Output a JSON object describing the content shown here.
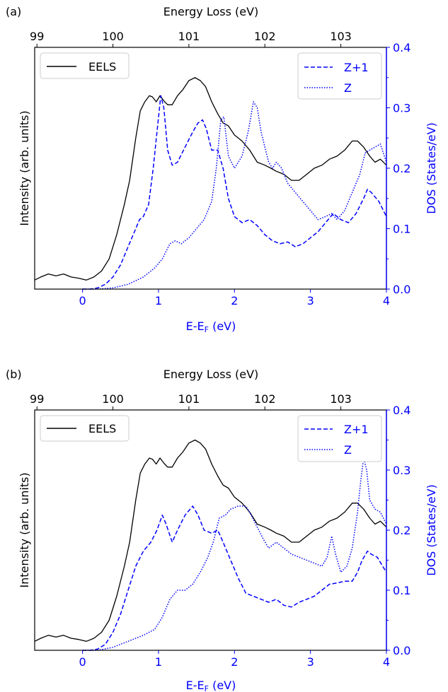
{
  "colors": {
    "eels": "#000000",
    "dos": "#0000ff",
    "text": "#000000",
    "legend_border": "#cccccc"
  },
  "chart_data": [
    {
      "panel_label": "(a)",
      "type": "line",
      "top_axis_label": "Energy Loss (eV)",
      "top_ticks": [
        99,
        100,
        101,
        102,
        103
      ],
      "top_tick_labels": [
        "99",
        "100",
        "101",
        "102",
        "103"
      ],
      "xlabel": "E-E",
      "xlabel_sub": "F",
      "xlabel_unit": " (eV)",
      "xlim": [
        -0.63,
        4.0
      ],
      "x_ticks": [
        0,
        1,
        2,
        3,
        4
      ],
      "x_tick_labels": [
        "0",
        "1",
        "2",
        "3",
        "4"
      ],
      "ylabel_left": "Intensity (arb. units)",
      "ylabel_right": "DOS (States/eV)",
      "ylim_right": [
        0.0,
        0.4
      ],
      "y_ticks_right": [
        0.0,
        0.1,
        0.2,
        0.3,
        0.4
      ],
      "y_tick_labels_right": [
        "0.0",
        "0.1",
        "0.2",
        "0.3",
        "0.4"
      ],
      "legend_left": {
        "label": "EELS",
        "placement": "upper-left"
      },
      "legend_right": {
        "labels": [
          "Z+1",
          "Z"
        ],
        "placement": "upper-right"
      },
      "series": [
        {
          "name": "EELS",
          "axis": "left",
          "style": "solid",
          "color": "#000000",
          "x": [
            -0.63,
            -0.55,
            -0.45,
            -0.35,
            -0.25,
            -0.15,
            -0.05,
            0.05,
            0.15,
            0.25,
            0.35,
            0.45,
            0.55,
            0.62,
            0.7,
            0.76,
            0.82,
            0.88,
            0.92,
            0.97,
            1.02,
            1.08,
            1.12,
            1.18,
            1.25,
            1.32,
            1.4,
            1.48,
            1.55,
            1.62,
            1.7,
            1.78,
            1.85,
            1.92,
            2.0,
            2.1,
            2.2,
            2.3,
            2.4,
            2.48,
            2.55,
            2.65,
            2.75,
            2.85,
            2.95,
            3.05,
            3.15,
            3.25,
            3.35,
            3.45,
            3.55,
            3.62,
            3.7,
            3.78,
            3.85,
            3.92,
            4.0
          ],
          "y": [
            0.015,
            0.02,
            0.025,
            0.022,
            0.025,
            0.02,
            0.018,
            0.015,
            0.02,
            0.03,
            0.05,
            0.09,
            0.14,
            0.18,
            0.25,
            0.295,
            0.31,
            0.32,
            0.318,
            0.31,
            0.32,
            0.31,
            0.305,
            0.305,
            0.32,
            0.33,
            0.345,
            0.35,
            0.345,
            0.335,
            0.31,
            0.29,
            0.275,
            0.27,
            0.255,
            0.245,
            0.23,
            0.21,
            0.205,
            0.2,
            0.195,
            0.19,
            0.18,
            0.18,
            0.19,
            0.2,
            0.205,
            0.215,
            0.22,
            0.23,
            0.245,
            0.245,
            0.235,
            0.22,
            0.21,
            0.215,
            0.205
          ]
        },
        {
          "name": "Z+1",
          "axis": "right",
          "style": "dashed",
          "color": "#0000ff",
          "x": [
            0.0,
            0.1,
            0.2,
            0.3,
            0.4,
            0.5,
            0.6,
            0.7,
            0.75,
            0.8,
            0.87,
            0.93,
            0.98,
            1.03,
            1.07,
            1.12,
            1.18,
            1.25,
            1.35,
            1.45,
            1.52,
            1.58,
            1.63,
            1.7,
            1.78,
            1.85,
            1.92,
            2.0,
            2.1,
            2.2,
            2.3,
            2.4,
            2.5,
            2.6,
            2.7,
            2.8,
            2.9,
            3.0,
            3.1,
            3.2,
            3.3,
            3.4,
            3.5,
            3.6,
            3.7,
            3.75,
            3.8,
            3.9,
            4.0
          ],
          "y": [
            0.0,
            0.0,
            0.002,
            0.008,
            0.02,
            0.04,
            0.07,
            0.1,
            0.115,
            0.12,
            0.14,
            0.2,
            0.26,
            0.32,
            0.3,
            0.23,
            0.205,
            0.21,
            0.235,
            0.26,
            0.275,
            0.28,
            0.265,
            0.23,
            0.23,
            0.2,
            0.15,
            0.12,
            0.11,
            0.115,
            0.105,
            0.09,
            0.08,
            0.075,
            0.078,
            0.07,
            0.075,
            0.085,
            0.095,
            0.11,
            0.125,
            0.115,
            0.11,
            0.125,
            0.15,
            0.165,
            0.16,
            0.145,
            0.12
          ]
        },
        {
          "name": "Z",
          "axis": "right",
          "style": "dotted",
          "color": "#0000ff",
          "x": [
            0.0,
            0.2,
            0.4,
            0.6,
            0.8,
            0.95,
            1.05,
            1.15,
            1.22,
            1.3,
            1.4,
            1.5,
            1.6,
            1.7,
            1.76,
            1.82,
            1.86,
            1.92,
            2.0,
            2.1,
            2.18,
            2.25,
            2.3,
            2.35,
            2.45,
            2.5,
            2.55,
            2.62,
            2.7,
            2.8,
            2.9,
            3.0,
            3.1,
            3.2,
            3.28,
            3.35,
            3.45,
            3.55,
            3.65,
            3.72,
            3.78,
            3.85,
            3.92,
            4.0
          ],
          "y": [
            0.0,
            0.0,
            0.002,
            0.008,
            0.02,
            0.035,
            0.05,
            0.075,
            0.08,
            0.075,
            0.085,
            0.1,
            0.115,
            0.145,
            0.2,
            0.28,
            0.285,
            0.22,
            0.2,
            0.22,
            0.26,
            0.31,
            0.3,
            0.26,
            0.21,
            0.2,
            0.21,
            0.2,
            0.175,
            0.16,
            0.145,
            0.13,
            0.115,
            0.12,
            0.125,
            0.115,
            0.13,
            0.16,
            0.19,
            0.225,
            0.23,
            0.235,
            0.24,
            0.21
          ]
        }
      ]
    },
    {
      "panel_label": "(b)",
      "type": "line",
      "top_axis_label": "Energy Loss (eV)",
      "top_ticks": [
        99,
        100,
        101,
        102,
        103
      ],
      "top_tick_labels": [
        "99",
        "100",
        "101",
        "102",
        "103"
      ],
      "xlabel": "E-E",
      "xlabel_sub": "F",
      "xlabel_unit": " (eV)",
      "xlim": [
        -0.63,
        4.0
      ],
      "x_ticks": [
        0,
        1,
        2,
        3,
        4
      ],
      "x_tick_labels": [
        "0",
        "1",
        "2",
        "3",
        "4"
      ],
      "ylabel_left": "Intensity (arb. units)",
      "ylabel_right": "DOS (States/eV)",
      "ylim_right": [
        0.0,
        0.4
      ],
      "y_ticks_right": [
        0.0,
        0.1,
        0.2,
        0.3,
        0.4
      ],
      "y_tick_labels_right": [
        "0.0",
        "0.1",
        "0.2",
        "0.3",
        "0.4"
      ],
      "legend_left": {
        "label": "EELS",
        "placement": "upper-left"
      },
      "legend_right": {
        "labels": [
          "Z+1",
          "Z"
        ],
        "placement": "upper-right"
      },
      "series": [
        {
          "name": "EELS",
          "axis": "left",
          "style": "solid",
          "color": "#000000",
          "x": [
            -0.63,
            -0.55,
            -0.45,
            -0.35,
            -0.25,
            -0.15,
            -0.05,
            0.05,
            0.15,
            0.25,
            0.35,
            0.45,
            0.55,
            0.62,
            0.7,
            0.76,
            0.82,
            0.88,
            0.92,
            0.97,
            1.02,
            1.08,
            1.12,
            1.18,
            1.25,
            1.32,
            1.4,
            1.48,
            1.55,
            1.62,
            1.7,
            1.78,
            1.85,
            1.92,
            2.0,
            2.1,
            2.2,
            2.3,
            2.4,
            2.48,
            2.55,
            2.65,
            2.75,
            2.85,
            2.95,
            3.05,
            3.15,
            3.25,
            3.35,
            3.45,
            3.55,
            3.62,
            3.7,
            3.78,
            3.85,
            3.92,
            4.0
          ],
          "y": [
            0.015,
            0.02,
            0.025,
            0.022,
            0.025,
            0.02,
            0.018,
            0.015,
            0.02,
            0.03,
            0.05,
            0.09,
            0.14,
            0.18,
            0.25,
            0.295,
            0.31,
            0.32,
            0.318,
            0.31,
            0.32,
            0.31,
            0.305,
            0.305,
            0.32,
            0.33,
            0.345,
            0.35,
            0.345,
            0.335,
            0.31,
            0.29,
            0.275,
            0.27,
            0.255,
            0.245,
            0.23,
            0.21,
            0.205,
            0.2,
            0.195,
            0.19,
            0.18,
            0.18,
            0.19,
            0.2,
            0.205,
            0.215,
            0.22,
            0.23,
            0.245,
            0.245,
            0.235,
            0.22,
            0.21,
            0.215,
            0.205
          ]
        },
        {
          "name": "Z+1",
          "axis": "right",
          "style": "dashed",
          "color": "#0000ff",
          "x": [
            0.0,
            0.1,
            0.2,
            0.3,
            0.4,
            0.5,
            0.6,
            0.7,
            0.8,
            0.9,
            0.98,
            1.05,
            1.1,
            1.18,
            1.25,
            1.35,
            1.45,
            1.52,
            1.6,
            1.7,
            1.78,
            1.85,
            1.95,
            2.05,
            2.15,
            2.25,
            2.35,
            2.45,
            2.55,
            2.65,
            2.75,
            2.85,
            2.95,
            3.05,
            3.15,
            3.25,
            3.35,
            3.45,
            3.55,
            3.62,
            3.68,
            3.75,
            3.8,
            3.88,
            3.95,
            4.0
          ],
          "y": [
            0.0,
            0.0,
            0.002,
            0.01,
            0.03,
            0.06,
            0.1,
            0.14,
            0.165,
            0.18,
            0.2,
            0.225,
            0.21,
            0.18,
            0.2,
            0.225,
            0.24,
            0.225,
            0.2,
            0.195,
            0.2,
            0.18,
            0.15,
            0.12,
            0.095,
            0.09,
            0.085,
            0.08,
            0.085,
            0.075,
            0.072,
            0.08,
            0.085,
            0.09,
            0.1,
            0.11,
            0.112,
            0.115,
            0.115,
            0.13,
            0.15,
            0.165,
            0.16,
            0.155,
            0.14,
            0.13
          ]
        },
        {
          "name": "Z",
          "axis": "right",
          "style": "dotted",
          "color": "#0000ff",
          "x": [
            0.0,
            0.2,
            0.4,
            0.6,
            0.8,
            0.95,
            1.05,
            1.15,
            1.25,
            1.35,
            1.45,
            1.55,
            1.65,
            1.72,
            1.8,
            1.88,
            1.95,
            2.05,
            2.15,
            2.22,
            2.3,
            2.38,
            2.45,
            2.55,
            2.65,
            2.75,
            2.85,
            2.95,
            3.05,
            3.15,
            3.22,
            3.28,
            3.33,
            3.4,
            3.48,
            3.55,
            3.62,
            3.66,
            3.7,
            3.74,
            3.78,
            3.85,
            3.92,
            4.0
          ],
          "y": [
            0.0,
            0.0,
            0.005,
            0.015,
            0.025,
            0.035,
            0.055,
            0.085,
            0.1,
            0.1,
            0.11,
            0.13,
            0.155,
            0.18,
            0.22,
            0.225,
            0.235,
            0.24,
            0.24,
            0.225,
            0.205,
            0.185,
            0.17,
            0.18,
            0.17,
            0.16,
            0.155,
            0.15,
            0.145,
            0.14,
            0.155,
            0.19,
            0.16,
            0.13,
            0.14,
            0.17,
            0.23,
            0.28,
            0.32,
            0.3,
            0.25,
            0.235,
            0.23,
            0.21
          ]
        }
      ]
    }
  ]
}
